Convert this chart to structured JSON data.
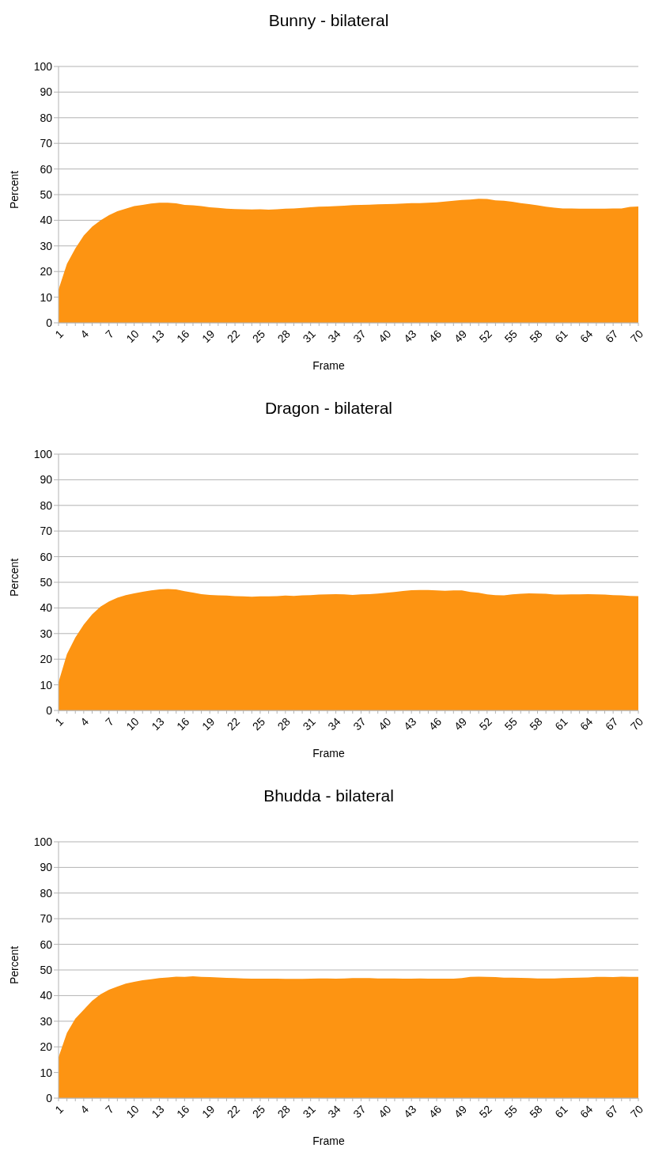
{
  "chart_data": [
    {
      "type": "area",
      "title": "Bunny - bilateral",
      "xlabel": "Frame",
      "ylabel": "Percent",
      "grid": "y",
      "ylim": [
        0,
        100
      ],
      "yticks": [
        0,
        10,
        20,
        30,
        40,
        50,
        60,
        70,
        80,
        90,
        100
      ],
      "categories": [
        "1",
        null,
        null,
        "4",
        null,
        null,
        "7",
        null,
        null,
        "10",
        null,
        null,
        "13",
        null,
        null,
        "16",
        null,
        null,
        "19",
        null,
        null,
        "22",
        null,
        null,
        "25",
        null,
        null,
        "28",
        null,
        null,
        "31",
        null,
        null,
        "34",
        null,
        null,
        "37",
        null,
        null,
        "40",
        null,
        null,
        "43",
        null,
        null,
        "46",
        null,
        null,
        "49",
        null,
        null,
        "52",
        null,
        null,
        "55",
        null,
        null,
        "58",
        null,
        null,
        "61",
        null,
        null,
        "64",
        null,
        null,
        "67",
        null,
        null,
        "70"
      ],
      "series": [
        {
          "color": "#fd9412",
          "values": [
            13,
            23,
            29,
            34,
            37.5,
            40,
            42,
            43.5,
            44.5,
            45.5,
            46,
            46.5,
            46.8,
            46.8,
            46.6,
            46,
            45.8,
            45.5,
            45.1,
            44.8,
            44.5,
            44.4,
            44.3,
            44.2,
            44.3,
            44.1,
            44.3,
            44.5,
            44.6,
            44.8,
            45.1,
            45.3,
            45.4,
            45.5,
            45.7,
            45.9,
            46,
            46.1,
            46.2,
            46.3,
            46.4,
            46.5,
            46.7,
            46.7,
            46.8,
            47,
            47.3,
            47.6,
            47.9,
            48.1,
            48.4,
            48.3,
            47.8,
            47.6,
            47.2,
            46.7,
            46.3,
            45.8,
            45.3,
            44.9,
            44.6,
            44.6,
            44.5,
            44.5,
            44.5,
            44.5,
            44.6,
            44.6,
            45.2,
            45.4
          ]
        }
      ]
    },
    {
      "type": "area",
      "title": "Dragon - bilateral",
      "xlabel": "Frame",
      "ylabel": "Percent",
      "grid": "y",
      "ylim": [
        0,
        100
      ],
      "yticks": [
        0,
        10,
        20,
        30,
        40,
        50,
        60,
        70,
        80,
        90,
        100
      ],
      "categories": [
        "1",
        null,
        null,
        "4",
        null,
        null,
        "7",
        null,
        null,
        "10",
        null,
        null,
        "13",
        null,
        null,
        "16",
        null,
        null,
        "19",
        null,
        null,
        "22",
        null,
        null,
        "25",
        null,
        null,
        "28",
        null,
        null,
        "31",
        null,
        null,
        "34",
        null,
        null,
        "37",
        null,
        null,
        "40",
        null,
        null,
        "43",
        null,
        null,
        "46",
        null,
        null,
        "49",
        null,
        null,
        "52",
        null,
        null,
        "55",
        null,
        null,
        "58",
        null,
        null,
        "61",
        null,
        null,
        "64",
        null,
        null,
        "67",
        null,
        null,
        "70"
      ],
      "series": [
        {
          "color": "#fd9412",
          "values": [
            11,
            22,
            28.5,
            33.5,
            37.5,
            40.5,
            42.5,
            44,
            45,
            45.7,
            46.3,
            46.8,
            47.2,
            47.4,
            47.2,
            46.5,
            46,
            45.4,
            45.1,
            44.9,
            44.8,
            44.6,
            44.5,
            44.4,
            44.5,
            44.5,
            44.6,
            44.8,
            44.7,
            44.9,
            45,
            45.2,
            45.3,
            45.4,
            45.3,
            45.1,
            45.3,
            45.4,
            45.6,
            45.9,
            46.2,
            46.6,
            46.9,
            47,
            47,
            46.8,
            46.7,
            46.8,
            46.8,
            46.2,
            45.9,
            45.3,
            45,
            44.9,
            45.3,
            45.5,
            45.7,
            45.6,
            45.5,
            45.2,
            45.2,
            45.3,
            45.3,
            45.4,
            45.3,
            45.2,
            45,
            44.9,
            44.7,
            44.6
          ]
        }
      ]
    },
    {
      "type": "area",
      "title": "Bhudda - bilateral",
      "xlabel": "Frame",
      "ylabel": "Percent",
      "grid": "y",
      "ylim": [
        0,
        100
      ],
      "yticks": [
        0,
        10,
        20,
        30,
        40,
        50,
        60,
        70,
        80,
        90,
        100
      ],
      "categories": [
        "1",
        null,
        null,
        "4",
        null,
        null,
        "7",
        null,
        null,
        "10",
        null,
        null,
        "13",
        null,
        null,
        "16",
        null,
        null,
        "19",
        null,
        null,
        "22",
        null,
        null,
        "25",
        null,
        null,
        "28",
        null,
        null,
        "31",
        null,
        null,
        "34",
        null,
        null,
        "37",
        null,
        null,
        "40",
        null,
        null,
        "43",
        null,
        null,
        "46",
        null,
        null,
        "49",
        null,
        null,
        "52",
        null,
        null,
        "55",
        null,
        null,
        "58",
        null,
        null,
        "61",
        null,
        null,
        "64",
        null,
        null,
        "67",
        null,
        null,
        "70"
      ],
      "series": [
        {
          "color": "#fd9412",
          "values": [
            16,
            25.5,
            31,
            34.5,
            38,
            40.5,
            42.3,
            43.5,
            44.7,
            45.4,
            46,
            46.4,
            46.8,
            47.1,
            47.4,
            47.3,
            47.5,
            47.3,
            47.2,
            47.1,
            46.9,
            46.8,
            46.7,
            46.6,
            46.6,
            46.6,
            46.6,
            46.5,
            46.5,
            46.5,
            46.6,
            46.7,
            46.7,
            46.6,
            46.7,
            46.8,
            46.8,
            46.8,
            46.7,
            46.7,
            46.7,
            46.6,
            46.6,
            46.7,
            46.6,
            46.6,
            46.6,
            46.6,
            46.8,
            47.3,
            47.4,
            47.3,
            47.2,
            47,
            47,
            46.9,
            46.8,
            46.7,
            46.7,
            46.7,
            46.8,
            46.9,
            47,
            47.1,
            47.3,
            47.3,
            47.2,
            47.4,
            47.3,
            47.3
          ]
        }
      ]
    }
  ]
}
